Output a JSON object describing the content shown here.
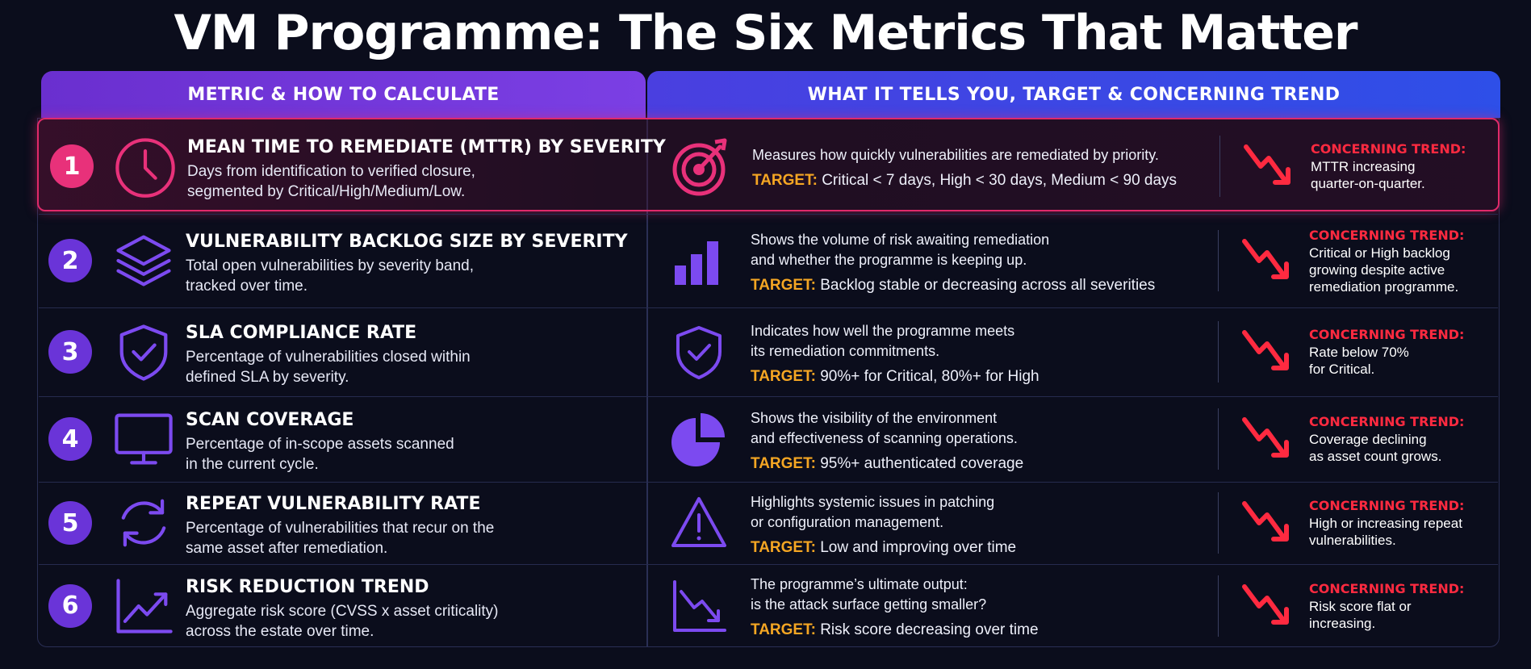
{
  "title": "VM Programme: The Six Metrics That Matter",
  "headers": {
    "left": "METRIC & HOW TO CALCULATE",
    "right": "WHAT IT TELLS YOU, TARGET & CONCERNING TREND"
  },
  "colors": {
    "accent_pink": "#e8317a",
    "accent_purple": "#6a34d8",
    "target_orange": "#f5a623",
    "concern_red": "#ff2a40",
    "background": "#0b0d1c"
  },
  "target_label": "TARGET:",
  "concern_label": "CONCERNING TREND:",
  "metrics": [
    {
      "number": "1",
      "icon": "clock-icon",
      "name": "MEAN TIME TO REMEDIATE (MTTR)  BY SEVERITY",
      "desc": [
        "Days from identification to verified closure,",
        "segmented by Critical/High/Medium/Low."
      ],
      "right_icon": "target-icon",
      "tells": [
        "Measures how quickly vulnerabilities are remediated by priority."
      ],
      "target": "Critical < 7 days, High < 30 days, Medium < 90 days",
      "concern": [
        "MTTR increasing",
        "quarter-on-quarter."
      ]
    },
    {
      "number": "2",
      "icon": "layers-icon",
      "name": "VULNERABILITY BACKLOG SIZE BY SEVERITY",
      "desc": [
        "Total open vulnerabilities by severity band,",
        "tracked over time."
      ],
      "right_icon": "bar-chart-icon",
      "tells": [
        "Shows the volume of risk awaiting remediation",
        "and whether the programme is keeping up."
      ],
      "target": "Backlog stable or decreasing across all severities",
      "concern": [
        "Critical or High backlog",
        "growing despite active",
        "remediation programme."
      ]
    },
    {
      "number": "3",
      "icon": "shield-check-icon",
      "name": "SLA COMPLIANCE RATE",
      "desc": [
        "Percentage of vulnerabilities closed within",
        "defined SLA by severity."
      ],
      "right_icon": "shield-check-icon",
      "tells": [
        "Indicates how well the programme meets",
        "its remediation commitments."
      ],
      "target": " 90%+ for Critical, 80%+ for High",
      "concern": [
        "Rate below 70%",
        "for Critical."
      ]
    },
    {
      "number": "4",
      "icon": "monitor-icon",
      "name": "SCAN COVERAGE",
      "desc": [
        "Percentage of in-scope assets scanned",
        "in the current cycle."
      ],
      "right_icon": "pie-chart-icon",
      "tells": [
        "Shows the visibility of the environment",
        "and effectiveness of scanning operations."
      ],
      "target": " 95%+ authenticated coverage",
      "concern": [
        "Coverage declining",
        "as asset count grows."
      ]
    },
    {
      "number": "5",
      "icon": "refresh-icon",
      "name": "REPEAT VULNERABILITY RATE",
      "desc": [
        "Percentage of vulnerabilities that recur on the",
        "same asset after remediation."
      ],
      "right_icon": "warning-icon",
      "tells": [
        "Highlights systemic issues in patching",
        "or configuration management."
      ],
      "target": " Low and improving over time",
      "concern": [
        "High or increasing repeat",
        "vulnerabilities."
      ]
    },
    {
      "number": "6",
      "icon": "trend-up-icon",
      "name": "RISK REDUCTION TREND",
      "desc": [
        "Aggregate risk score (CVSS x asset criticality)",
        "across the estate over time."
      ],
      "right_icon": "trend-down-icon",
      "tells": [
        "The programme’s ultimate output:",
        "is the attack surface getting smaller?"
      ],
      "target": " Risk score decreasing over time",
      "concern": [
        "Risk score flat or",
        "increasing."
      ]
    }
  ]
}
